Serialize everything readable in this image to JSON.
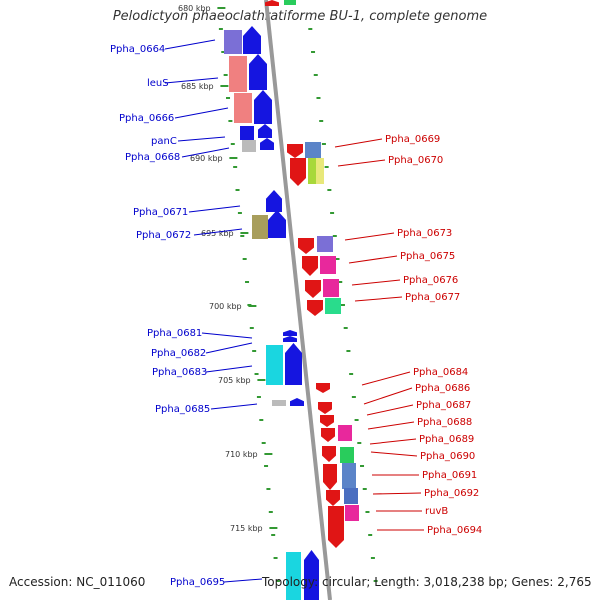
{
  "title": "Pelodictyon phaeoclathratiforme BU-1, complete genome",
  "footer": {
    "accession": "Accession: NC_011060",
    "info": "Topology: circular; Length: 3,018,238 bp; Genes: 2,765"
  },
  "colors": {
    "forward_label": "#0000cc",
    "reverse_label": "#cc0000",
    "backbone": "#999999",
    "ticks": "#339933"
  },
  "ticks": [
    "680 kbp",
    "685 kbp",
    "690 kbp",
    "695 kbp",
    "700 kbp",
    "705 kbp",
    "710 kbp",
    "715 kbp"
  ],
  "left_genes": [
    "Ppha_0664",
    "leuS",
    "Ppha_0666",
    "panC",
    "Ppha_0668",
    "Ppha_0671",
    "Ppha_0672",
    "Ppha_0681",
    "Ppha_0682",
    "Ppha_0683",
    "Ppha_0685",
    "Ppha_0695"
  ],
  "right_genes": [
    "Ppha_0669",
    "Ppha_0670",
    "Ppha_0673",
    "Ppha_0675",
    "Ppha_0676",
    "Ppha_0677",
    "Ppha_0684",
    "Ppha_0686",
    "Ppha_0687",
    "Ppha_0688",
    "Ppha_0689",
    "Ppha_0690",
    "Ppha_0691",
    "Ppha_0692",
    "ruvB",
    "Ppha_0694"
  ]
}
